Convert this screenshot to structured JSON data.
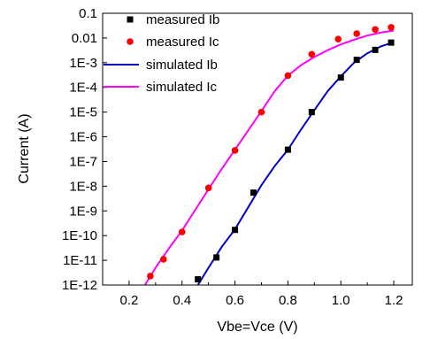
{
  "chart_data": {
    "type": "scatter",
    "title": "",
    "xlabel": "Vbe=Vce (V)",
    "ylabel": "Current (A)",
    "xlim": [
      0.1,
      1.27
    ],
    "ylim": [
      1e-12,
      0.1
    ],
    "y_scale": "log",
    "grid": false,
    "legend_position": "top-left",
    "x_ticks": [
      0.2,
      0.4,
      0.6,
      0.8,
      1.0,
      1.2
    ],
    "x_tick_labels": [
      "0.2",
      "0.4",
      "0.6",
      "0.8",
      "1.0",
      "1.2"
    ],
    "y_ticks": [
      1e-12,
      1e-11,
      1e-10,
      1e-09,
      1e-08,
      1e-07,
      1e-06,
      1e-05,
      0.0001,
      0.001,
      0.01,
      0.1
    ],
    "y_tick_labels": [
      "1E-12",
      "1E-11",
      "1E-10",
      "1E-9",
      "1E-8",
      "1E-7",
      "1E-6",
      "1E-5",
      "1E-4",
      "1E-3",
      "0.01",
      "0.1"
    ],
    "series": [
      {
        "name": "measured Ib",
        "kind": "scatter",
        "marker": "square",
        "color": "#000000",
        "x": [
          0.46,
          0.53,
          0.6,
          0.67,
          0.8,
          0.89,
          1.0,
          1.06,
          1.13,
          1.19
        ],
        "y": [
          1.7e-12,
          1.3e-11,
          1.7e-10,
          5.5e-09,
          3e-07,
          1e-05,
          0.00025,
          0.0013,
          0.0033,
          0.0065
        ]
      },
      {
        "name": "measured Ic",
        "kind": "scatter",
        "marker": "circle",
        "color": "#ff0000",
        "x": [
          0.28,
          0.33,
          0.4,
          0.5,
          0.6,
          0.7,
          0.8,
          0.89,
          0.99,
          1.06,
          1.13,
          1.19
        ],
        "y": [
          2.3e-12,
          1.1e-11,
          1.4e-10,
          8.5e-09,
          2.8e-07,
          1e-05,
          0.0003,
          0.0022,
          0.009,
          0.015,
          0.022,
          0.027
        ]
      },
      {
        "name": "simulated Ib",
        "kind": "line",
        "color": "#0000cc",
        "x": [
          0.46,
          0.5,
          0.55,
          0.6,
          0.65,
          0.7,
          0.75,
          0.8,
          0.85,
          0.9,
          0.95,
          1.0,
          1.05,
          1.1,
          1.15,
          1.2
        ],
        "y": [
          1e-12,
          5e-12,
          3.5e-11,
          1.8e-10,
          1.4e-09,
          1.1e-08,
          6.5e-08,
          3e-07,
          2e-06,
          1.2e-05,
          7e-05,
          0.00028,
          0.001,
          0.0024,
          0.0045,
          0.0068
        ]
      },
      {
        "name": "simulated Ic",
        "kind": "line",
        "color": "#ff00ff",
        "x": [
          0.26,
          0.3,
          0.35,
          0.4,
          0.45,
          0.5,
          0.55,
          0.6,
          0.65,
          0.7,
          0.75,
          0.8,
          0.85,
          0.9,
          0.95,
          1.0,
          1.05,
          1.1,
          1.15,
          1.2
        ],
        "y": [
          1e-12,
          5e-12,
          3e-11,
          1.6e-10,
          1.1e-09,
          7.5e-09,
          5e-08,
          3e-07,
          1.8e-06,
          1.1e-05,
          7e-05,
          0.0003,
          0.0008,
          0.0017,
          0.0032,
          0.0055,
          0.0085,
          0.0125,
          0.0165,
          0.02
        ]
      }
    ]
  }
}
